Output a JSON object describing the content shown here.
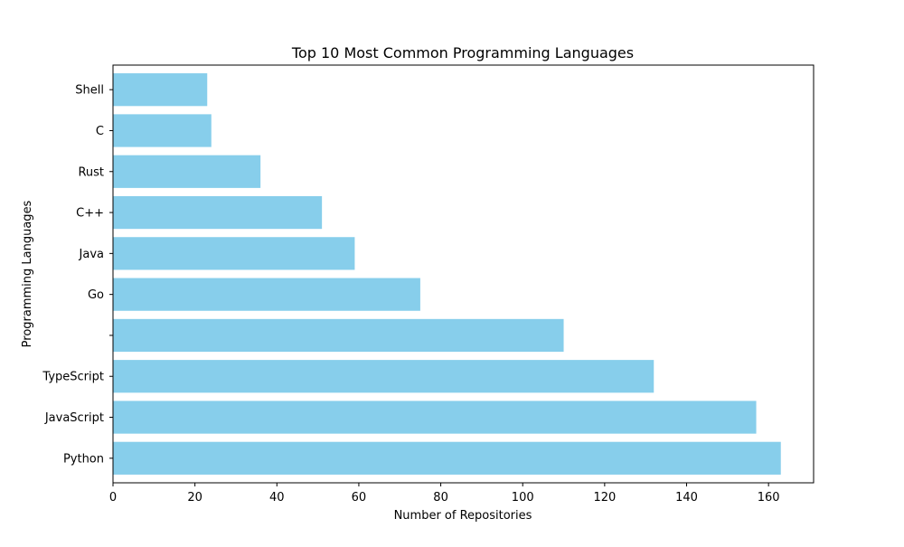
{
  "chart_data": {
    "type": "bar",
    "orientation": "horizontal",
    "title": "Top 10 Most Common Programming Languages",
    "xlabel": "Number of Repositories",
    "ylabel": "Programming Languages",
    "categories": [
      "Python",
      "JavaScript",
      "TypeScript",
      "",
      "Go",
      "Java",
      "C++",
      "Rust",
      "C",
      "Shell"
    ],
    "values": [
      163,
      157,
      132,
      110,
      75,
      59,
      51,
      36,
      24,
      23
    ],
    "xlim": [
      0,
      171
    ],
    "xticks": [
      0,
      20,
      40,
      60,
      80,
      100,
      120,
      140,
      160
    ],
    "grid": false,
    "bar_color": "#87CEEB"
  }
}
